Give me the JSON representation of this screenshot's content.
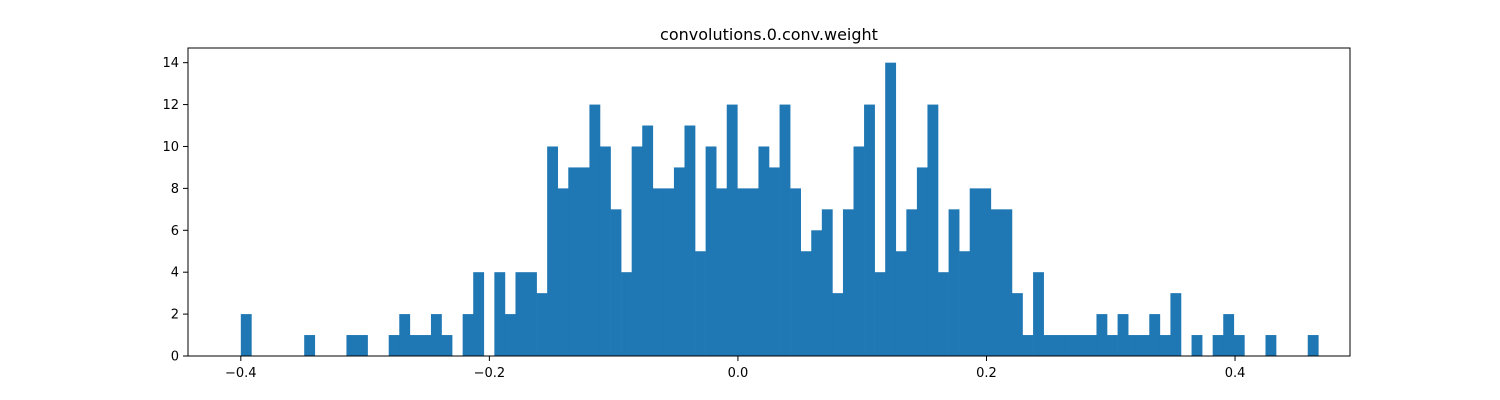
{
  "chart_data": {
    "type": "bar",
    "title": "convolutions.0.conv.weight",
    "xlabel": "",
    "ylabel": "",
    "xlim": [
      -0.4425,
      0.4925
    ],
    "ylim": [
      0,
      14.7
    ],
    "xticks": [
      -0.4,
      -0.2,
      0.0,
      0.2,
      0.4
    ],
    "xtick_labels": [
      "−0.4",
      "−0.2",
      "0.0",
      "0.2",
      "0.4"
    ],
    "yticks": [
      0,
      2,
      4,
      6,
      8,
      10,
      12,
      14
    ],
    "ytick_labels": [
      "0",
      "2",
      "4",
      "6",
      "8",
      "10",
      "12",
      "14"
    ],
    "grid": false,
    "bin_start": -0.4,
    "bin_width": 0.0085,
    "values": [
      2,
      0,
      0,
      0,
      0,
      0,
      1,
      0,
      0,
      0,
      1,
      1,
      0,
      0,
      1,
      2,
      1,
      1,
      2,
      1,
      0,
      2,
      4,
      0,
      4,
      2,
      4,
      4,
      3,
      10,
      8,
      9,
      9,
      12,
      10,
      7,
      4,
      10,
      11,
      8,
      8,
      9,
      11,
      5,
      10,
      8,
      12,
      8,
      8,
      10,
      9,
      12,
      8,
      5,
      6,
      7,
      3,
      7,
      10,
      12,
      4,
      14,
      5,
      7,
      9,
      12,
      4,
      7,
      5,
      8,
      8,
      7,
      7,
      3,
      1,
      4,
      1,
      1,
      1,
      1,
      1,
      2,
      1,
      2,
      1,
      1,
      2,
      1,
      3,
      0,
      1,
      0,
      1,
      2,
      1,
      0,
      0,
      1,
      0,
      0,
      0,
      1
    ],
    "bar_color": "#1f77b4"
  }
}
